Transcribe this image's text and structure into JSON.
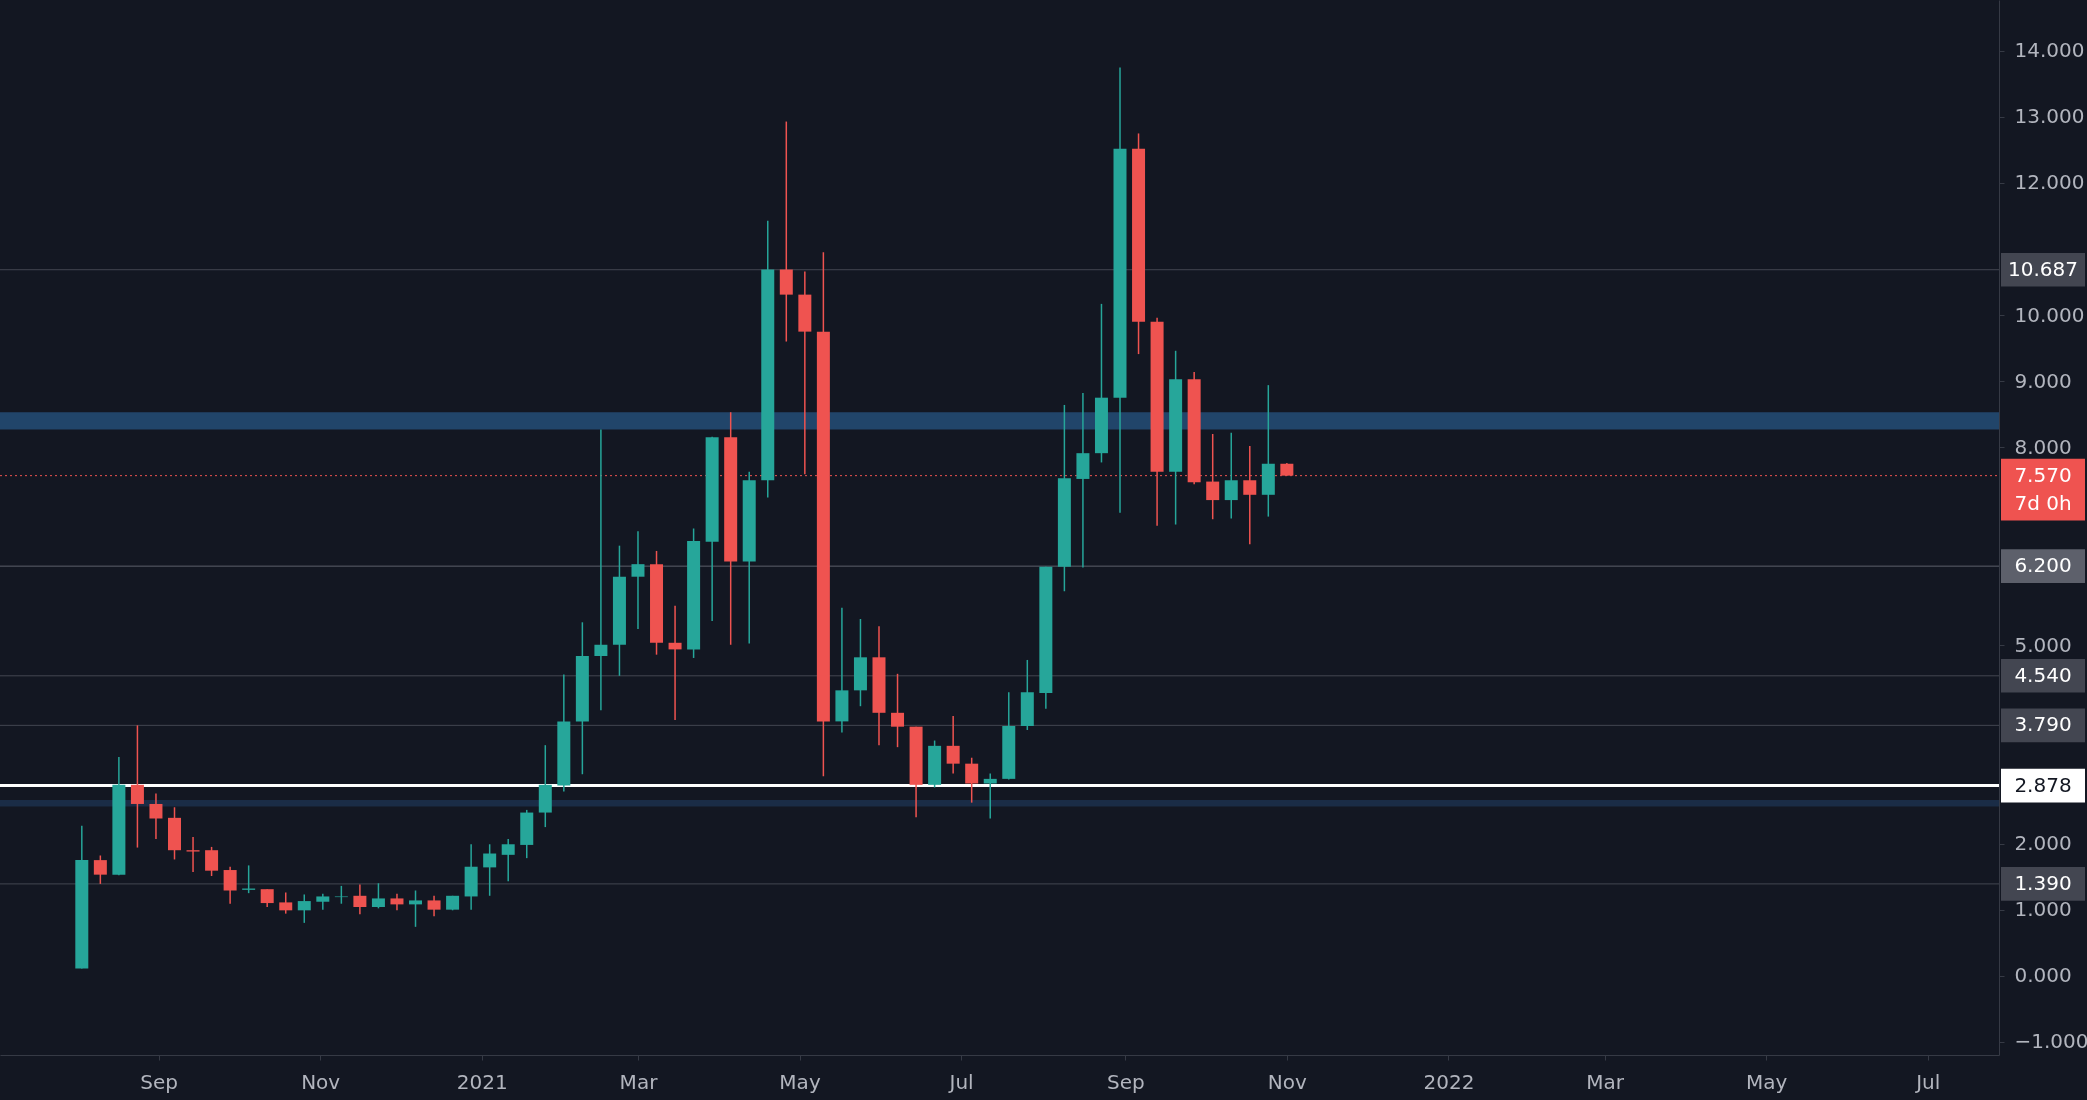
{
  "chart_data": {
    "type": "candlestick",
    "x": [
      "2020-08-03",
      "2020-08-10",
      "2020-08-17",
      "2020-08-24",
      "2020-08-31",
      "2020-09-07",
      "2020-09-14",
      "2020-09-21",
      "2020-09-28",
      "2020-10-05",
      "2020-10-12",
      "2020-10-19",
      "2020-10-26",
      "2020-11-02",
      "2020-11-09",
      "2020-11-16",
      "2020-11-23",
      "2020-11-30",
      "2020-12-07",
      "2020-12-14",
      "2020-12-21",
      "2020-12-28",
      "2021-01-04",
      "2021-01-11",
      "2021-01-18",
      "2021-01-25",
      "2021-02-01",
      "2021-02-08",
      "2021-02-15",
      "2021-02-22",
      "2021-03-01",
      "2021-03-08",
      "2021-03-15",
      "2021-03-22",
      "2021-03-29",
      "2021-04-05",
      "2021-04-12",
      "2021-04-19",
      "2021-04-26",
      "2021-05-03",
      "2021-05-10",
      "2021-05-17",
      "2021-05-24",
      "2021-05-31",
      "2021-06-07",
      "2021-06-14",
      "2021-06-21",
      "2021-06-28",
      "2021-07-05",
      "2021-07-12",
      "2021-07-19",
      "2021-07-26",
      "2021-08-02",
      "2021-08-09",
      "2021-08-16",
      "2021-08-23",
      "2021-08-30",
      "2021-09-06",
      "2021-09-13",
      "2021-09-20",
      "2021-09-27",
      "2021-10-04",
      "2021-10-11",
      "2021-10-18",
      "2021-10-25",
      "2021-11-01"
    ],
    "ohlc": [
      [
        0.11,
        2.27,
        0.11,
        1.75
      ],
      [
        1.75,
        1.82,
        1.39,
        1.53
      ],
      [
        1.53,
        3.31,
        1.52,
        2.89
      ],
      [
        2.89,
        3.79,
        1.94,
        2.6
      ],
      [
        2.6,
        2.76,
        2.07,
        2.38
      ],
      [
        2.39,
        2.55,
        1.76,
        1.9
      ],
      [
        1.9,
        2.1,
        1.57,
        1.88
      ],
      [
        1.9,
        1.95,
        1.51,
        1.59
      ],
      [
        1.6,
        1.65,
        1.09,
        1.29
      ],
      [
        1.3,
        1.67,
        1.25,
        1.32
      ],
      [
        1.31,
        1.31,
        1.04,
        1.1
      ],
      [
        1.11,
        1.26,
        0.94,
        0.99
      ],
      [
        0.99,
        1.23,
        0.8,
        1.13
      ],
      [
        1.12,
        1.24,
        1.0,
        1.2
      ],
      [
        1.19,
        1.36,
        1.09,
        1.2
      ],
      [
        1.21,
        1.38,
        0.93,
        1.04
      ],
      [
        1.04,
        1.4,
        1.02,
        1.17
      ],
      [
        1.17,
        1.24,
        0.99,
        1.08
      ],
      [
        1.08,
        1.29,
        0.74,
        1.14
      ],
      [
        1.14,
        1.21,
        0.9,
        1.0
      ],
      [
        1.0,
        1.21,
        0.99,
        1.21
      ],
      [
        1.2,
        1.99,
        1.0,
        1.65
      ],
      [
        1.64,
        1.99,
        1.21,
        1.85
      ],
      [
        1.83,
        2.07,
        1.43,
        1.99
      ],
      [
        1.98,
        2.51,
        1.78,
        2.47
      ],
      [
        2.47,
        3.49,
        2.25,
        2.89
      ],
      [
        2.88,
        4.56,
        2.79,
        3.85
      ],
      [
        3.85,
        5.35,
        3.05,
        4.84
      ],
      [
        4.84,
        8.27,
        4.02,
        5.01
      ],
      [
        5.01,
        6.51,
        4.54,
        6.04
      ],
      [
        6.04,
        6.73,
        5.25,
        6.23
      ],
      [
        6.23,
        6.43,
        4.86,
        5.04
      ],
      [
        5.04,
        5.6,
        3.87,
        4.94
      ],
      [
        4.94,
        6.77,
        4.81,
        6.58
      ],
      [
        6.57,
        8.16,
        5.37,
        8.15
      ],
      [
        8.15,
        8.53,
        5.01,
        6.27
      ],
      [
        6.27,
        7.63,
        5.03,
        7.5
      ],
      [
        7.5,
        11.43,
        7.24,
        10.69
      ],
      [
        10.69,
        12.93,
        9.6,
        10.31
      ],
      [
        10.31,
        10.66,
        7.59,
        9.75
      ],
      [
        9.75,
        10.95,
        3.02,
        3.85
      ],
      [
        3.85,
        5.57,
        3.68,
        4.32
      ],
      [
        4.32,
        5.4,
        4.08,
        4.82
      ],
      [
        4.82,
        5.29,
        3.49,
        3.98
      ],
      [
        3.98,
        4.57,
        3.46,
        3.77
      ],
      [
        3.77,
        3.77,
        2.4,
        2.89
      ],
      [
        2.89,
        3.56,
        2.85,
        3.48
      ],
      [
        3.48,
        3.93,
        3.06,
        3.21
      ],
      [
        3.21,
        3.3,
        2.62,
        2.91
      ],
      [
        2.91,
        3.06,
        2.38,
        2.98
      ],
      [
        2.98,
        4.29,
        2.97,
        3.78
      ],
      [
        3.78,
        4.78,
        3.72,
        4.29
      ],
      [
        4.28,
        6.19,
        4.04,
        6.19
      ],
      [
        6.19,
        8.64,
        5.82,
        7.53
      ],
      [
        7.52,
        8.82,
        6.18,
        7.91
      ],
      [
        7.91,
        10.17,
        7.77,
        8.75
      ],
      [
        8.75,
        13.75,
        7.01,
        12.52
      ],
      [
        12.52,
        12.75,
        9.41,
        9.9
      ],
      [
        9.9,
        9.96,
        6.81,
        7.63
      ],
      [
        7.63,
        9.46,
        6.83,
        9.03
      ],
      [
        9.03,
        9.14,
        7.44,
        7.47
      ],
      [
        7.48,
        8.2,
        6.91,
        7.2
      ],
      [
        7.2,
        8.22,
        6.92,
        7.5
      ],
      [
        7.5,
        8.02,
        6.53,
        7.28
      ],
      [
        7.28,
        8.94,
        6.95,
        7.75
      ],
      [
        7.75,
        7.76,
        7.57,
        7.57
      ]
    ],
    "colors": [
      "#26a69a",
      "#ef5350",
      "#26a69a",
      "#ef5350",
      "#ef5350",
      "#ef5350",
      "#ef5350",
      "#ef5350",
      "#ef5350",
      "#26a69a",
      "#ef5350",
      "#ef5350",
      "#26a69a",
      "#26a69a",
      "#26a69a",
      "#ef5350",
      "#26a69a",
      "#ef5350",
      "#26a69a",
      "#ef5350",
      "#26a69a",
      "#26a69a",
      "#26a69a",
      "#26a69a",
      "#26a69a",
      "#26a69a",
      "#26a69a",
      "#26a69a",
      "#26a69a",
      "#26a69a",
      "#26a69a",
      "#ef5350",
      "#ef5350",
      "#26a69a",
      "#26a69a",
      "#ef5350",
      "#26a69a",
      "#26a69a",
      "#ef5350",
      "#ef5350",
      "#ef5350",
      "#26a69a",
      "#26a69a",
      "#ef5350",
      "#ef5350",
      "#ef5350",
      "#26a69a",
      "#ef5350",
      "#ef5350",
      "#26a69a",
      "#26a69a",
      "#26a69a",
      "#26a69a",
      "#26a69a",
      "#26a69a",
      "#26a69a",
      "#26a69a",
      "#ef5350",
      "#ef5350",
      "#26a69a",
      "#ef5350",
      "#ef5350",
      "#26a69a",
      "#ef5350",
      "#26a69a",
      "#ef5350"
    ],
    "xlim": [
      "2020-07-05",
      "2022-07-26"
    ],
    "xticks": [
      {
        "value": "2020-09-01",
        "label": "Sep"
      },
      {
        "value": "2020-11-01",
        "label": "Nov"
      },
      {
        "value": "2021-01-01",
        "label": "2021"
      },
      {
        "value": "2021-03-01",
        "label": "Mar"
      },
      {
        "value": "2021-05-01",
        "label": "May"
      },
      {
        "value": "2021-07-01",
        "label": "Jul"
      },
      {
        "value": "2021-09-01",
        "label": "Sep"
      },
      {
        "value": "2021-11-01",
        "label": "Nov"
      },
      {
        "value": "2022-01-01",
        "label": "2022"
      },
      {
        "value": "2022-03-01",
        "label": "Mar"
      },
      {
        "value": "2022-05-01",
        "label": "May"
      },
      {
        "value": "2022-07-01",
        "label": "Jul"
      }
    ],
    "ylim": [
      -1.2,
      14.77
    ],
    "yticks": [
      {
        "value": -1,
        "label": "−1.000"
      },
      {
        "value": 0,
        "label": "0.000"
      },
      {
        "value": 1,
        "label": "1.000"
      },
      {
        "value": 2,
        "label": "2.000"
      },
      {
        "value": 5,
        "label": "5.000"
      },
      {
        "value": 8,
        "label": "8.000"
      },
      {
        "value": 9,
        "label": "9.000"
      },
      {
        "value": 10,
        "label": "10.000"
      },
      {
        "value": 12,
        "label": "12.000"
      },
      {
        "value": 13,
        "label": "13.000"
      },
      {
        "value": 14,
        "label": "14.000"
      }
    ],
    "bands": [
      {
        "axis": "y",
        "from": 8.27,
        "to": 8.53,
        "color": "#234a72"
      },
      {
        "axis": "y",
        "from": 2.56,
        "to": 2.66,
        "color": "#1c2f4a"
      }
    ],
    "ref_lines": [
      {
        "axis": "y",
        "value": 10.687,
        "label": "10.687",
        "color": "#434651",
        "line_style": "solid"
      },
      {
        "axis": "y",
        "value": 6.2,
        "label": "6.200",
        "color": "#5d606b",
        "line_style": "solid"
      },
      {
        "axis": "y",
        "value": 4.54,
        "label": "4.540",
        "color": "#434651",
        "line_style": "solid"
      },
      {
        "axis": "y",
        "value": 3.79,
        "label": "3.790",
        "color": "#434651",
        "line_style": "solid"
      },
      {
        "axis": "y",
        "value": 2.878,
        "label": "2.878",
        "color": "#ffffff",
        "line_style": "solid"
      },
      {
        "axis": "y",
        "value": 1.39,
        "label": "1.390",
        "color": "#434651",
        "line_style": "solid"
      },
      {
        "axis": "y",
        "value": 7.57,
        "label": "7.570",
        "color": "#ef5350",
        "line_style": "dotted"
      }
    ],
    "annotations": [
      "7d 0h"
    ],
    "grid": false
  }
}
